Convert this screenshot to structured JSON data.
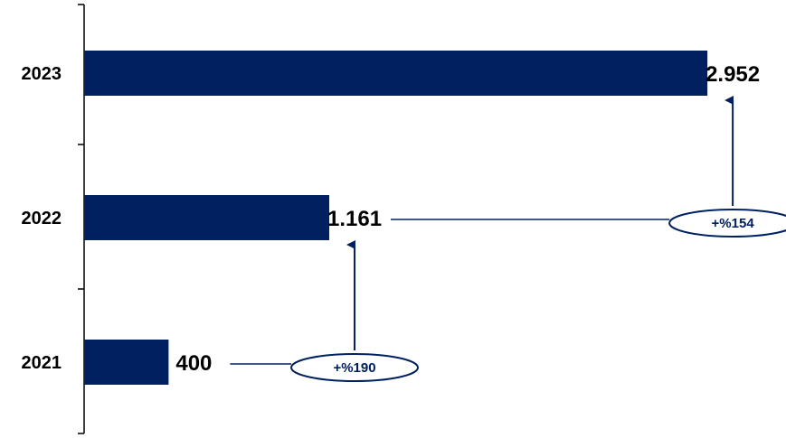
{
  "chart_data": {
    "type": "bar",
    "orientation": "horizontal",
    "categories": [
      "2023",
      "2022",
      "2021"
    ],
    "values": [
      2952,
      1161,
      400
    ],
    "value_labels": [
      "2.952",
      "1.161",
      "400"
    ],
    "xlim": [
      0,
      3200
    ],
    "bar_color": "#002060",
    "grid": false,
    "legend": "none",
    "annotations": [
      {
        "from": "2021",
        "to": "2022",
        "label": "+%190"
      },
      {
        "from": "2022",
        "to": "2023",
        "label": "+%154"
      }
    ]
  }
}
